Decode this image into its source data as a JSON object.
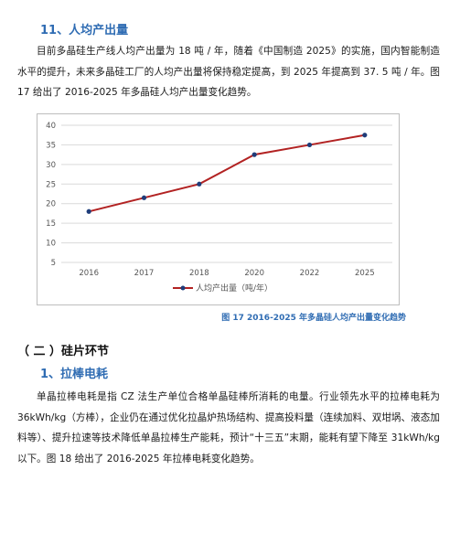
{
  "section1": {
    "heading": "11、人均产出量",
    "para": "目前多晶硅生产线人均产出量为 18 吨 / 年，随着《中国制造 2025》的实施，国内智能制造水平的提升，未来多晶硅工厂的人均产出量将保持稳定提高，到 2025 年提高到 37. 5 吨 / 年。图 17 给出了 2016-2025 年多晶硅人均产出量变化趋势。"
  },
  "chart_data": {
    "type": "line",
    "categories": [
      "2016",
      "2017",
      "2018",
      "2020",
      "2022",
      "2025"
    ],
    "series": [
      {
        "name": "人均产出量（吨/年）",
        "values": [
          18,
          21.5,
          25,
          32.5,
          35,
          37.5
        ],
        "color": "#b22222",
        "marker_color": "#1f3d7a"
      }
    ],
    "ylim": [
      5,
      40
    ],
    "yticks": [
      "5",
      "10",
      "15",
      "20",
      "25",
      "30",
      "35",
      "40"
    ],
    "grid": true,
    "legend": "bottom"
  },
  "figure17": {
    "caption": "图 17 2016-2025 年多晶硅人均产出量变化趋势"
  },
  "section2": {
    "heading": "（ 二 ）硅片环节"
  },
  "section3": {
    "heading": "1、拉棒电耗",
    "para": "单晶拉棒电耗是指 CZ 法生产单位合格单晶硅棒所消耗的电量。行业领先水平的拉棒电耗为 36kWh/kg（方棒），企业仍在通过优化拉晶炉热场结构、提高投料量（连续加料、双坩埚、液态加料等）、提升拉速等技术降低单晶拉棒生产能耗，预计“十三五”末期，能耗有望下降至 31kWh/kg 以下。图 18 给出了 2016-2025 年拉棒电耗变化趋势。"
  }
}
